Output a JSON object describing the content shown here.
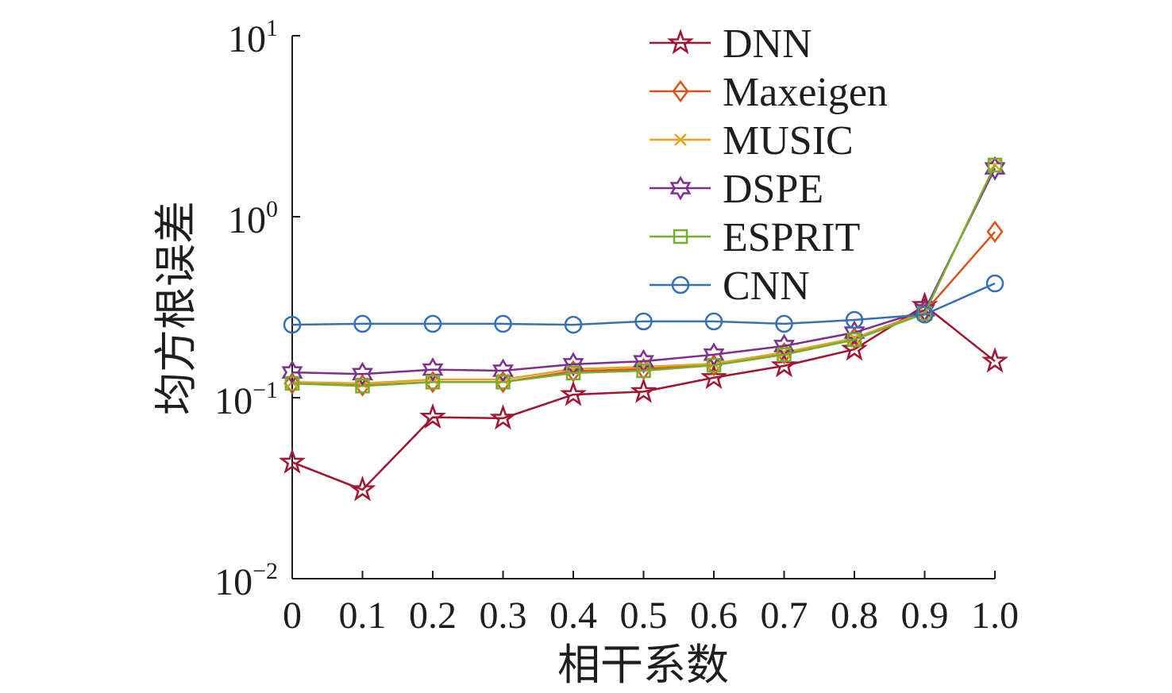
{
  "chart_data": {
    "type": "line",
    "x": [
      0,
      0.1,
      0.2,
      0.3,
      0.4,
      0.5,
      0.6,
      0.7,
      0.8,
      0.9,
      1.0
    ],
    "x_tick_labels": [
      "0",
      "0.1",
      "0.2",
      "0.3",
      "0.4",
      "0.5",
      "0.6",
      "0.7",
      "0.8",
      "0.9",
      "1.0"
    ],
    "xlim": [
      0,
      1.0
    ],
    "ylim": [
      0.01,
      10
    ],
    "yscale": "log",
    "y_ticks": [
      10,
      1,
      0.1,
      0.01
    ],
    "y_tick_labels": [
      {
        "base": "10",
        "exp": "1"
      },
      {
        "base": "10",
        "exp": "0"
      },
      {
        "base": "10",
        "exp": "−1"
      },
      {
        "base": "10",
        "exp": "−2"
      }
    ],
    "xlabel": "相干系数",
    "ylabel": "均方根误差",
    "grid": false,
    "legend": "top-right",
    "series": [
      {
        "name": "DNN",
        "marker": "star",
        "color": "#A2142F",
        "values": [
          0.044,
          0.031,
          0.078,
          0.077,
          0.104,
          0.108,
          0.129,
          0.15,
          0.185,
          0.323,
          0.159
        ]
      },
      {
        "name": "Maxeigen",
        "marker": "diamond",
        "color": "#D95319",
        "values": [
          0.12,
          0.117,
          0.122,
          0.122,
          0.14,
          0.144,
          0.151,
          0.176,
          0.213,
          0.298,
          0.826
        ]
      },
      {
        "name": "MUSIC",
        "marker": "x-mark",
        "color": "#E3A51E",
        "values": [
          0.122,
          0.12,
          0.126,
          0.126,
          0.144,
          0.148,
          0.154,
          0.178,
          0.213,
          0.295,
          1.93
        ]
      },
      {
        "name": "DSPE",
        "marker": "hexagram",
        "color": "#7E2F8E",
        "values": [
          0.138,
          0.135,
          0.143,
          0.141,
          0.153,
          0.159,
          0.173,
          0.193,
          0.229,
          0.304,
          1.85
        ]
      },
      {
        "name": "ESPRIT",
        "marker": "square",
        "color": "#77AC30",
        "values": [
          0.12,
          0.116,
          0.122,
          0.122,
          0.137,
          0.141,
          0.151,
          0.173,
          0.209,
          0.292,
          1.93
        ]
      },
      {
        "name": "CNN",
        "marker": "circle",
        "color": "#3570B5",
        "values": [
          0.253,
          0.256,
          0.256,
          0.256,
          0.253,
          0.264,
          0.264,
          0.256,
          0.269,
          0.288,
          0.428
        ]
      }
    ]
  }
}
